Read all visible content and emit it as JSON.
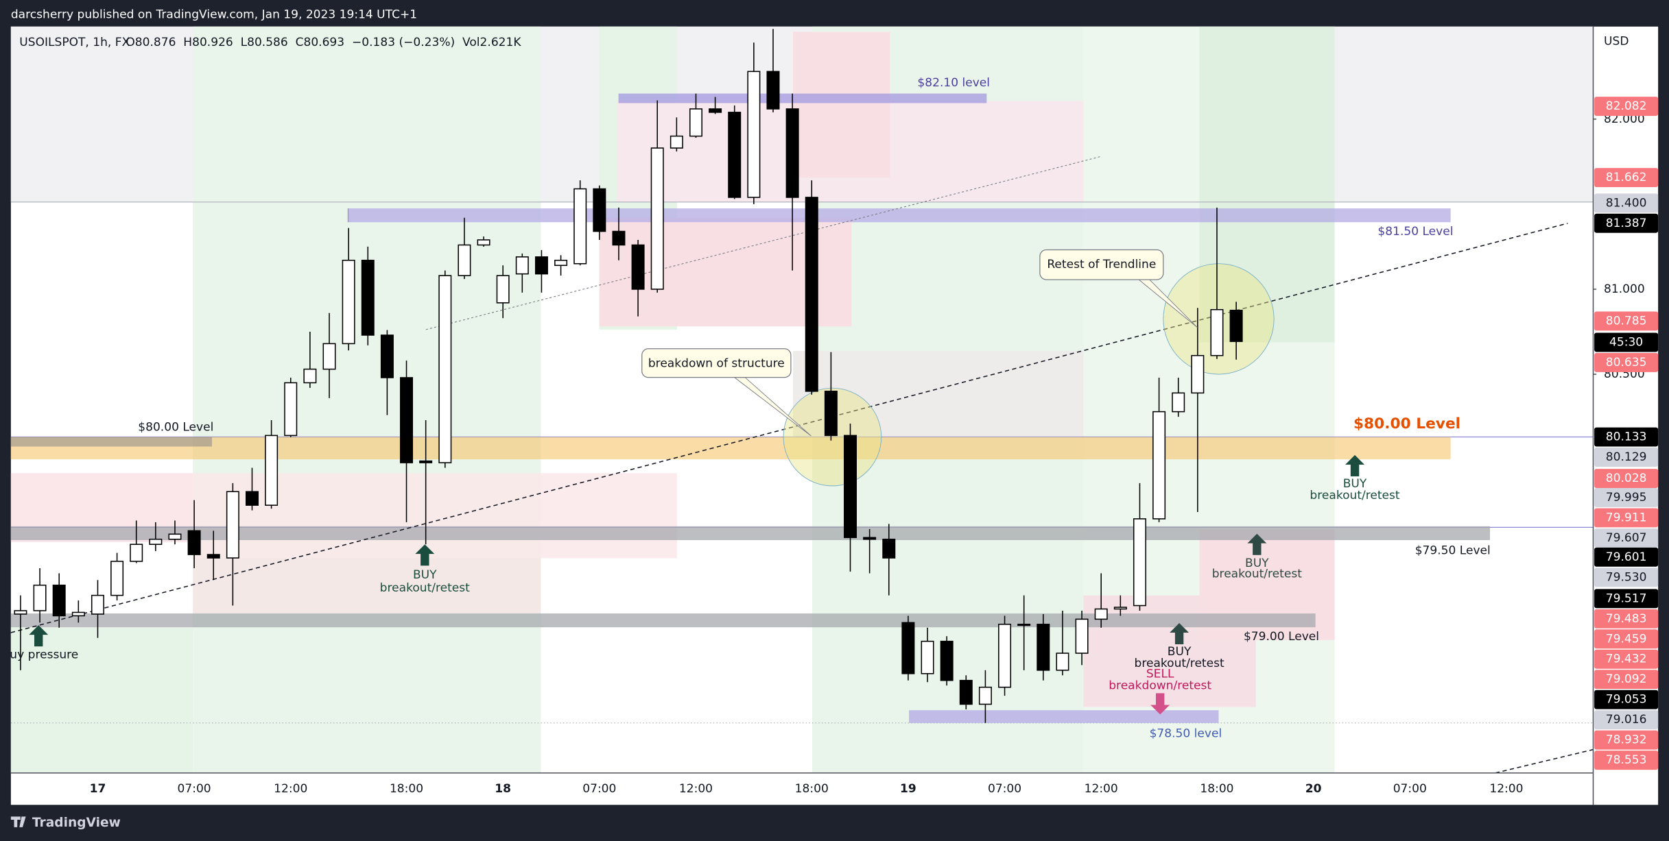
{
  "header": {
    "publisher": "darcsherry published on TradingView.com, Jan 19, 2023 19:14 UTC+1",
    "symbol": "USOILSPOT, 1h, FX",
    "ohlc": "O80.876  H80.926  L80.586  C80.693  −0.183 (−0.23%)  Vol2.621K"
  },
  "chart_data": {
    "type": "candlestick",
    "currency": "USD",
    "categories": [
      null,
      null,
      null,
      null,
      "17",
      null,
      null,
      null,
      null,
      "07:00",
      null,
      null,
      null,
      null,
      "12:00",
      null,
      null,
      null,
      null,
      null,
      "18:00",
      null,
      null,
      null,
      null,
      "18",
      null,
      null,
      null,
      null,
      "07:00",
      null,
      null,
      null,
      null,
      "12:00",
      null,
      null,
      null,
      null,
      null,
      "18:00",
      null,
      null,
      null,
      null,
      "19",
      null,
      null,
      null,
      null,
      "07:00",
      null,
      null,
      null,
      null,
      "12:00",
      null,
      null,
      null,
      null,
      null,
      "18:00",
      null,
      null,
      null,
      null,
      "20",
      null,
      null,
      null,
      null,
      "07:00",
      null,
      null,
      null,
      null,
      "12:00",
      null,
      null,
      null,
      null
    ],
    "open": [
      79.09,
      79.11,
      79.26,
      79.08,
      79.09,
      79.2,
      79.4,
      79.5,
      79.53,
      79.58,
      79.44,
      79.42,
      79.81,
      79.73,
      80.14,
      80.45,
      80.53,
      80.68,
      81.17,
      80.73,
      80.48,
      79.99,
      79.98,
      81.08,
      81.26,
      80.92,
      81.09,
      81.19,
      81.14,
      81.15,
      81.59,
      81.34,
      81.26,
      81.0,
      81.83,
      81.9,
      82.06,
      82.04,
      81.54,
      82.28,
      82.06,
      81.54,
      80.4,
      80.14,
      79.54,
      79.53,
      79.04,
      78.74,
      78.93,
      78.7,
      78.56,
      78.66,
      79.03,
      79.03,
      78.76,
      78.86,
      79.06,
      79.12,
      79.14,
      79.65,
      80.28,
      80.39,
      80.61,
      80.876,
      null,
      null,
      null,
      null,
      null,
      null,
      null,
      null,
      null,
      null,
      null,
      null,
      null,
      null,
      null,
      null,
      null,
      null
    ],
    "high": [
      79.2,
      79.36,
      79.33,
      79.17,
      79.29,
      79.45,
      79.64,
      79.63,
      79.64,
      79.76,
      79.58,
      79.86,
      79.95,
      80.23,
      80.48,
      80.75,
      80.86,
      81.36,
      81.25,
      80.76,
      80.58,
      80.23,
      81.11,
      81.42,
      81.31,
      81.14,
      81.21,
      81.23,
      81.2,
      81.64,
      81.61,
      81.48,
      81.29,
      82.11,
      82.01,
      82.15,
      82.13,
      82.08,
      82.45,
      82.53,
      82.15,
      81.64,
      80.63,
      80.21,
      79.59,
      79.62,
      79.08,
      79.01,
      78.96,
      78.73,
      78.76,
      79.08,
      79.2,
      79.09,
      79.11,
      79.11,
      79.33,
      79.2,
      79.86,
      80.48,
      80.48,
      80.89,
      81.48,
      80.926,
      null,
      null,
      null,
      null,
      null,
      null,
      null,
      null,
      null,
      null,
      null,
      null,
      null,
      null,
      null,
      null,
      null,
      null
    ],
    "low": [
      78.76,
      79.04,
      79.01,
      79.04,
      78.95,
      79.17,
      79.39,
      79.46,
      79.5,
      79.36,
      79.29,
      79.14,
      79.7,
      79.71,
      80.13,
      80.42,
      80.36,
      80.64,
      80.67,
      80.26,
      79.63,
      79.5,
      79.95,
      81.06,
      81.25,
      80.83,
      80.98,
      80.98,
      81.08,
      81.14,
      81.29,
      81.17,
      80.84,
      80.98,
      81.81,
      81.89,
      82.03,
      81.53,
      81.5,
      82.04,
      81.11,
      80.38,
      80.11,
      79.34,
      79.33,
      79.2,
      78.7,
      78.69,
      78.67,
      78.53,
      78.45,
      78.61,
      78.76,
      78.7,
      78.73,
      78.79,
      79.01,
      79.08,
      79.11,
      79.63,
      80.25,
      79.69,
      80.59,
      80.586,
      null,
      null,
      null,
      null,
      null,
      null,
      null,
      null,
      null,
      null,
      null,
      null,
      null,
      null,
      null,
      null,
      null,
      null
    ],
    "close": [
      79.11,
      79.26,
      79.08,
      79.1,
      79.2,
      79.4,
      79.5,
      79.53,
      79.56,
      79.44,
      79.42,
      79.81,
      79.73,
      80.14,
      80.45,
      80.53,
      80.68,
      81.17,
      80.73,
      80.48,
      79.98,
      79.98,
      81.08,
      81.26,
      81.29,
      81.08,
      81.19,
      81.09,
      81.17,
      81.59,
      81.34,
      81.26,
      81.0,
      81.83,
      81.9,
      82.06,
      82.04,
      81.54,
      82.28,
      82.06,
      81.54,
      80.4,
      80.14,
      79.54,
      79.53,
      79.42,
      78.74,
      78.93,
      78.7,
      78.56,
      78.66,
      79.03,
      79.03,
      78.76,
      78.86,
      79.06,
      79.12,
      79.13,
      79.65,
      80.28,
      80.39,
      80.61,
      80.88,
      80.693,
      null,
      null,
      null,
      null,
      null,
      null,
      null,
      null,
      null,
      null,
      null,
      null,
      null,
      null,
      null,
      null,
      null,
      null
    ],
    "up_color": "#ffffff",
    "down_color": "#000000",
    "ylim": [
      78.156,
      82.544
    ],
    "yticks": [
      {
        "value": 80.5,
        "label": "80.500"
      },
      {
        "value": 81,
        "label": "81.000"
      },
      {
        "value": 82,
        "label": "82.000"
      }
    ],
    "grid": false,
    "price_badges": [
      {
        "text": "82.082",
        "color": "#f7777d"
      },
      {
        "text": "81.662",
        "color": "#f7777d"
      },
      {
        "text": "81.400",
        "color": "#d1d4dc"
      },
      {
        "text": "81.387",
        "color": "#000000"
      },
      {
        "text": "80.785",
        "color": "#f7777d"
      },
      {
        "text": "45:30",
        "color": "#000000"
      },
      {
        "text": "80.635",
        "color": "#f7777d"
      },
      {
        "text": "80.133",
        "color": "#000000"
      },
      {
        "text": "80.129",
        "color": "#d1d4dc"
      },
      {
        "text": "80.028",
        "color": "#f7777d"
      },
      {
        "text": "79.995",
        "color": "#d1d4dc"
      },
      {
        "text": "79.911",
        "color": "#f7777d"
      },
      {
        "text": "79.607",
        "color": "#d1d4dc"
      },
      {
        "text": "79.601",
        "color": "#000000"
      },
      {
        "text": "79.530",
        "color": "#d1d4dc"
      },
      {
        "text": "79.517",
        "color": "#000000"
      },
      {
        "text": "79.483",
        "color": "#f7777d"
      },
      {
        "text": "79.459",
        "color": "#f7777d"
      },
      {
        "text": "79.432",
        "color": "#f7777d"
      },
      {
        "text": "79.092",
        "color": "#f7777d"
      },
      {
        "text": "79.053",
        "color": "#000000"
      },
      {
        "text": "79.016",
        "color": "#d1d4dc"
      },
      {
        "text": "78.932",
        "color": "#f7777d"
      },
      {
        "text": "78.553",
        "color": "#f7777d"
      }
    ]
  },
  "annotations": {
    "levels": [
      "$82.10 level",
      "$81.50 Level",
      "$80.00 Level",
      "$80.00 Level",
      "$79.50 Level",
      "$79.00 Level",
      "$78.50 level"
    ],
    "callouts": [
      "breakdown of structure",
      "Retest of Trendline"
    ],
    "signals": [
      {
        "action": "BUY",
        "note": "breakout/retest"
      },
      {
        "action": "BUY",
        "note": "breakout/retest"
      },
      {
        "action": "BUY",
        "note": "breakout/retest"
      },
      {
        "action": "BUY",
        "note": "breakout/retest"
      },
      {
        "action": "SELL",
        "note": "breakdown/retest"
      }
    ],
    "pressure": "uy pressure"
  },
  "footer": {
    "brand": "TradingView"
  }
}
